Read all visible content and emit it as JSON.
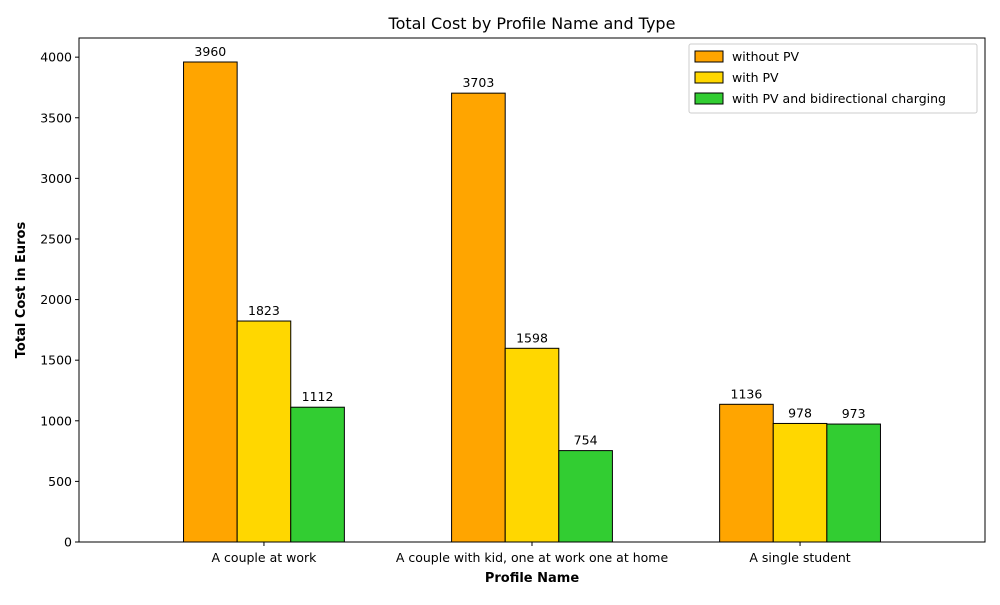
{
  "chart_data": {
    "type": "bar",
    "title": "Total Cost by Profile Name and Type",
    "xlabel": "Profile Name",
    "ylabel": "Total Cost in Euros",
    "categories": [
      "A couple at work",
      "A couple with kid, one at work one at home",
      "A single student"
    ],
    "series": [
      {
        "name": "without PV",
        "color": "#ffa500",
        "values": [
          3960,
          3703,
          1136
        ]
      },
      {
        "name": "with PV",
        "color": "#ffd700",
        "values": [
          1823,
          1598,
          978
        ]
      },
      {
        "name": "with PV and bidirectional charging",
        "color": "#32cd32",
        "values": [
          1112,
          754,
          973
        ]
      }
    ],
    "ylim": [
      0,
      4158
    ],
    "yticks": [
      0,
      500,
      1000,
      1500,
      2000,
      2500,
      3000,
      3500,
      4000
    ],
    "grid": false,
    "legend_position": "top-right",
    "bar_edge_color": "#000000"
  }
}
